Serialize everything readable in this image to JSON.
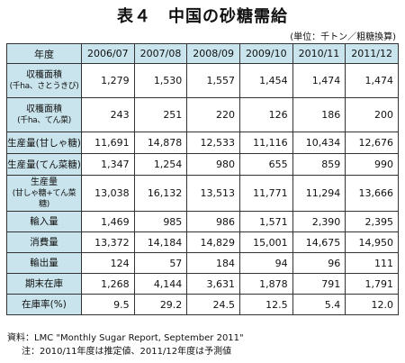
{
  "title": "表４　中国の砂糖需給",
  "unit_note": "(単位：千トン／粗糖換算)",
  "table": {
    "corner_header": "年度",
    "years": [
      "2006/07",
      "2007/08",
      "2008/09",
      "2009/10",
      "2010/11",
      "2011/12"
    ],
    "rows": [
      {
        "label": "収穫面積",
        "sublabel": "(千ha、さとうきび)",
        "values": [
          "1,279",
          "1,530",
          "1,557",
          "1,454",
          "1,474",
          "1,474"
        ]
      },
      {
        "label": "収穫面積",
        "sublabel": "(千ha、てん菜)",
        "values": [
          "243",
          "251",
          "220",
          "126",
          "186",
          "200"
        ]
      },
      {
        "label": "生産量(甘しゃ糖)",
        "sublabel": "",
        "values": [
          "11,691",
          "14,878",
          "12,533",
          "11,116",
          "10,434",
          "12,676"
        ]
      },
      {
        "label": "生産量(てん菜糖)",
        "sublabel": "",
        "values": [
          "1,347",
          "1,254",
          "980",
          "655",
          "859",
          "990"
        ]
      },
      {
        "label": "生産量",
        "sublabel": "(甘しゃ糖+てん菜糖)",
        "values": [
          "13,038",
          "16,132",
          "13,513",
          "11,771",
          "11,294",
          "13,666"
        ]
      },
      {
        "label": "輸入量",
        "sublabel": "",
        "values": [
          "1,469",
          "985",
          "986",
          "1,571",
          "2,390",
          "2,395"
        ]
      },
      {
        "label": "消費量",
        "sublabel": "",
        "values": [
          "13,372",
          "14,184",
          "14,829",
          "15,001",
          "14,675",
          "14,950"
        ]
      },
      {
        "label": "輸出量",
        "sublabel": "",
        "values": [
          "124",
          "57",
          "184",
          "94",
          "96",
          "111"
        ]
      },
      {
        "label": "期末在庫",
        "sublabel": "",
        "values": [
          "1,268",
          "4,144",
          "3,631",
          "1,878",
          "791",
          "1,791"
        ]
      },
      {
        "label": "在庫率(%)",
        "sublabel": "",
        "values": [
          "9.5",
          "29.2",
          "24.5",
          "12.5",
          "5.4",
          "12.0"
        ]
      }
    ]
  },
  "notes": {
    "source": "資料：LMC \"Monthly Sugar Report, September 2011\"",
    "remark": "注：2010/11年度は推定値、2011/12年度は予測値"
  },
  "colors": {
    "header_fill": "#c9e4ec",
    "border": "#333333"
  }
}
